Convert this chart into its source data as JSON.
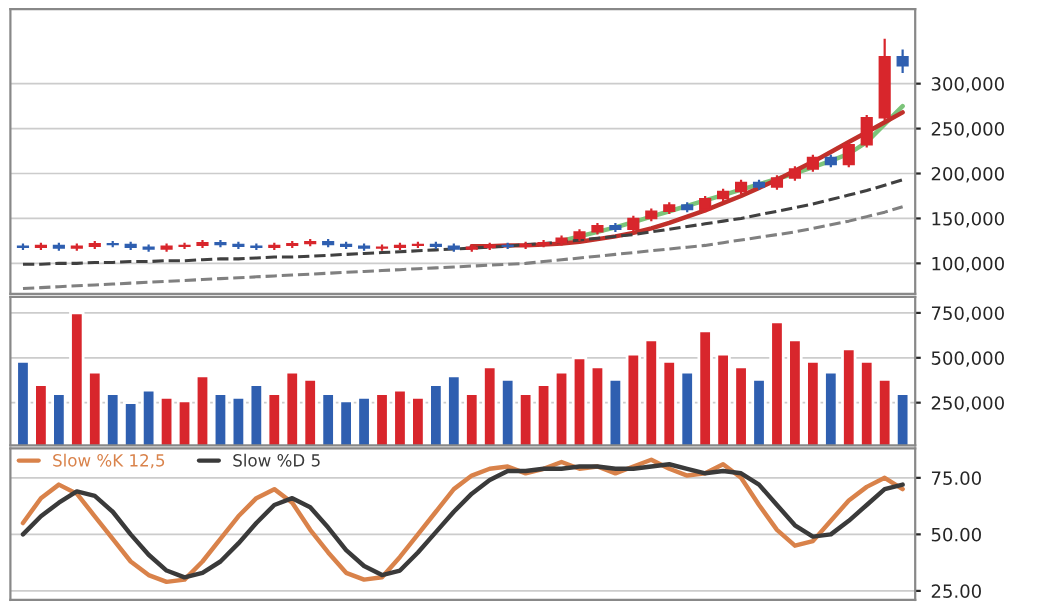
{
  "chart_data": [
    {
      "type": "candlestick",
      "categories": [
        null,
        null,
        null,
        null,
        null,
        null,
        null,
        null,
        null,
        null,
        null,
        null,
        null,
        null,
        null,
        null,
        null,
        null,
        null,
        null,
        null,
        null,
        null,
        null,
        null,
        null,
        null,
        null,
        null,
        null,
        null,
        null,
        null,
        null,
        null,
        null,
        null,
        null,
        null,
        null,
        null,
        null,
        null,
        null,
        null,
        null,
        null,
        null,
        null,
        null
      ],
      "ohlc": [
        [
          119000,
          122000,
          115000,
          118000
        ],
        [
          118000,
          123000,
          115000,
          120000
        ],
        [
          120000,
          123000,
          114000,
          117000
        ],
        [
          117000,
          122000,
          114000,
          119000
        ],
        [
          119000,
          125000,
          116000,
          122000
        ],
        [
          122000,
          125000,
          118000,
          121000
        ],
        [
          121000,
          124000,
          115000,
          118000
        ],
        [
          118000,
          121000,
          113000,
          116000
        ],
        [
          116000,
          122000,
          113000,
          119000
        ],
        [
          119000,
          123000,
          116000,
          120000
        ],
        [
          120000,
          126000,
          117000,
          123000
        ],
        [
          123000,
          126000,
          118000,
          121000
        ],
        [
          121000,
          124000,
          116000,
          119000
        ],
        [
          119000,
          122000,
          115000,
          118000
        ],
        [
          118000,
          123000,
          115000,
          120000
        ],
        [
          120000,
          125000,
          117000,
          122000
        ],
        [
          122000,
          127000,
          119000,
          124000
        ],
        [
          124000,
          127000,
          118000,
          121000
        ],
        [
          121000,
          124000,
          116000,
          119000
        ],
        [
          119000,
          122000,
          114000,
          117000
        ],
        [
          117000,
          121000,
          114000,
          118000
        ],
        [
          118000,
          123000,
          115000,
          120000
        ],
        [
          120000,
          124000,
          117000,
          121000
        ],
        [
          121000,
          124000,
          116000,
          119000
        ],
        [
          119000,
          122000,
          113000,
          116000
        ],
        [
          116000,
          121000,
          113000,
          118000
        ],
        [
          118000,
          123000,
          115000,
          120000
        ],
        [
          120000,
          123000,
          116000,
          119000
        ],
        [
          119000,
          124000,
          116000,
          121000
        ],
        [
          121000,
          126000,
          118000,
          123000
        ],
        [
          123000,
          131000,
          120000,
          128000
        ],
        [
          128000,
          138000,
          125000,
          135000
        ],
        [
          135000,
          145000,
          132000,
          142000
        ],
        [
          142000,
          145000,
          135000,
          138000
        ],
        [
          138000,
          153000,
          135000,
          150000
        ],
        [
          150000,
          161000,
          147000,
          158000
        ],
        [
          158000,
          168000,
          155000,
          165000
        ],
        [
          165000,
          168000,
          157000,
          160000
        ],
        [
          160000,
          175000,
          157000,
          172000
        ],
        [
          172000,
          183000,
          169000,
          180000
        ],
        [
          180000,
          193000,
          177000,
          190000
        ],
        [
          190000,
          193000,
          182000,
          185000
        ],
        [
          185000,
          198000,
          182000,
          195000
        ],
        [
          195000,
          208000,
          192000,
          205000
        ],
        [
          205000,
          221000,
          202000,
          218000
        ],
        [
          218000,
          221000,
          207000,
          210000
        ],
        [
          210000,
          235000,
          207000,
          232000
        ],
        [
          232000,
          265000,
          229000,
          262000
        ],
        [
          262000,
          350000,
          259000,
          330000
        ],
        [
          330000,
          338000,
          312000,
          320000
        ]
      ],
      "colors": [
        "#2f5fb0",
        "#d8262c",
        "#2f5fb0",
        "#d8262c",
        "#d8262c",
        "#2f5fb0",
        "#2f5fb0",
        "#2f5fb0",
        "#d8262c",
        "#d8262c",
        "#d8262c",
        "#2f5fb0",
        "#2f5fb0",
        "#2f5fb0",
        "#d8262c",
        "#d8262c",
        "#d8262c",
        "#2f5fb0",
        "#2f5fb0",
        "#2f5fb0",
        "#d8262c",
        "#d8262c",
        "#d8262c",
        "#2f5fb0",
        "#2f5fb0",
        "#d8262c",
        "#d8262c",
        "#2f5fb0",
        "#d8262c",
        "#d8262c",
        "#d8262c",
        "#d8262c",
        "#d8262c",
        "#2f5fb0",
        "#d8262c",
        "#d8262c",
        "#d8262c",
        "#2f5fb0",
        "#d8262c",
        "#d8262c",
        "#d8262c",
        "#2f5fb0",
        "#d8262c",
        "#d8262c",
        "#d8262c",
        "#2f5fb0",
        "#d8262c",
        "#d8262c",
        "#d8262c",
        "#2f5fb0"
      ],
      "series": [
        {
          "type": "line",
          "color": "#7cc47a",
          "line_style": "solid",
          "values": [
            null,
            null,
            null,
            null,
            null,
            null,
            null,
            null,
            null,
            null,
            null,
            null,
            null,
            null,
            null,
            null,
            null,
            null,
            null,
            null,
            null,
            null,
            null,
            null,
            null,
            null,
            null,
            null,
            null,
            null,
            125000,
            130000,
            135000,
            140000,
            146000,
            152000,
            158000,
            164000,
            170000,
            176000,
            182000,
            188000,
            194000,
            200000,
            207000,
            214000,
            222000,
            235000,
            255000,
            275000
          ]
        },
        {
          "type": "line",
          "color": "#c0302a",
          "line_style": "solid",
          "values": [
            null,
            null,
            null,
            null,
            null,
            null,
            null,
            null,
            null,
            null,
            null,
            null,
            null,
            null,
            null,
            null,
            null,
            null,
            null,
            null,
            null,
            null,
            null,
            null,
            null,
            119000,
            119000,
            120000,
            120000,
            121000,
            122000,
            124000,
            127000,
            130000,
            134000,
            139000,
            145000,
            152000,
            159000,
            167000,
            175000,
            184000,
            193000,
            203000,
            213000,
            224000,
            235000,
            246000,
            257000,
            268000
          ]
        },
        {
          "type": "line",
          "color": "#404040",
          "line_style": "dashed",
          "values": [
            99000,
            99000,
            100000,
            100000,
            101000,
            101000,
            102000,
            102000,
            103000,
            103000,
            104000,
            105000,
            105000,
            106000,
            107000,
            107000,
            108000,
            109000,
            110000,
            111000,
            112000,
            113000,
            114000,
            115000,
            116000,
            117000,
            118000,
            119000,
            121000,
            122000,
            124000,
            126000,
            128000,
            130000,
            132000,
            135000,
            138000,
            141000,
            144000,
            147000,
            150000,
            154000,
            158000,
            162000,
            166000,
            171000,
            176000,
            181000,
            187000,
            193000
          ]
        },
        {
          "type": "line",
          "color": "#808080",
          "line_style": "dashed",
          "values": [
            72000,
            73000,
            74000,
            75000,
            76000,
            77000,
            78000,
            79000,
            80000,
            81000,
            82000,
            83000,
            84000,
            85000,
            86000,
            87000,
            88000,
            89000,
            90000,
            91000,
            92000,
            93000,
            94000,
            95000,
            96000,
            97000,
            98000,
            99000,
            100000,
            102000,
            104000,
            106000,
            108000,
            110000,
            112000,
            114000,
            116000,
            118000,
            120000,
            123000,
            126000,
            129000,
            132000,
            135000,
            139000,
            143000,
            147000,
            152000,
            157000,
            163000
          ]
        }
      ],
      "ylim": [
        66000,
        383000
      ],
      "yticks": [
        {
          "value": 100000,
          "label": "100,000"
        },
        {
          "value": 150000,
          "label": "150,000"
        },
        {
          "value": 200000,
          "label": "200,000"
        },
        {
          "value": 250000,
          "label": "250,000"
        },
        {
          "value": 300000,
          "label": "300,000"
        }
      ],
      "tick_labels": "y",
      "grid": "y"
    },
    {
      "type": "bar",
      "categories": [
        null,
        null,
        null,
        null,
        null,
        null,
        null,
        null,
        null,
        null,
        null,
        null,
        null,
        null,
        null,
        null,
        null,
        null,
        null,
        null,
        null,
        null,
        null,
        null,
        null,
        null,
        null,
        null,
        null,
        null,
        null,
        null,
        null,
        null,
        null,
        null,
        null,
        null,
        null,
        null,
        null,
        null,
        null,
        null,
        null,
        null,
        null,
        null,
        null,
        null
      ],
      "values": [
        480000,
        350000,
        300000,
        750000,
        420000,
        300000,
        250000,
        320000,
        280000,
        260000,
        400000,
        300000,
        280000,
        350000,
        300000,
        420000,
        380000,
        300000,
        260000,
        280000,
        300000,
        320000,
        280000,
        350000,
        400000,
        300000,
        450000,
        380000,
        300000,
        350000,
        420000,
        500000,
        450000,
        380000,
        520000,
        600000,
        480000,
        420000,
        650000,
        520000,
        450000,
        380000,
        700000,
        600000,
        480000,
        420000,
        550000,
        480000,
        380000,
        300000
      ],
      "colors": [
        "#2f5fb0",
        "#d8262c",
        "#2f5fb0",
        "#d8262c",
        "#d8262c",
        "#2f5fb0",
        "#2f5fb0",
        "#2f5fb0",
        "#d8262c",
        "#d8262c",
        "#d8262c",
        "#2f5fb0",
        "#2f5fb0",
        "#2f5fb0",
        "#d8262c",
        "#d8262c",
        "#d8262c",
        "#2f5fb0",
        "#2f5fb0",
        "#2f5fb0",
        "#d8262c",
        "#d8262c",
        "#d8262c",
        "#2f5fb0",
        "#2f5fb0",
        "#d8262c",
        "#d8262c",
        "#2f5fb0",
        "#d8262c",
        "#d8262c",
        "#d8262c",
        "#d8262c",
        "#d8262c",
        "#2f5fb0",
        "#d8262c",
        "#d8262c",
        "#d8262c",
        "#2f5fb0",
        "#d8262c",
        "#d8262c",
        "#d8262c",
        "#2f5fb0",
        "#d8262c",
        "#d8262c",
        "#d8262c",
        "#2f5fb0",
        "#d8262c",
        "#d8262c",
        "#d8262c",
        "#2f5fb0"
      ],
      "ylim": [
        12000,
        839000
      ],
      "yticks": [
        {
          "value": 250000,
          "label": "250,000"
        },
        {
          "value": 500000,
          "label": "500,000"
        },
        {
          "value": 750000,
          "label": "750,000"
        }
      ],
      "tick_labels": "y",
      "grid": "y"
    },
    {
      "type": "line",
      "categories": [
        null,
        null,
        null,
        null,
        null,
        null,
        null,
        null,
        null,
        null,
        null,
        null,
        null,
        null,
        null,
        null,
        null,
        null,
        null,
        null,
        null,
        null,
        null,
        null,
        null,
        null,
        null,
        null,
        null,
        null,
        null,
        null,
        null,
        null,
        null,
        null,
        null,
        null,
        null,
        null,
        null,
        null,
        null,
        null,
        null,
        null,
        null,
        null,
        null,
        null
      ],
      "series": [
        {
          "name": "Slow %K 12,5",
          "color": "#d9824a",
          "values": [
            55,
            66,
            72,
            68,
            58,
            48,
            38,
            32,
            29,
            30,
            38,
            48,
            58,
            66,
            70,
            64,
            52,
            42,
            33,
            30,
            31,
            40,
            50,
            60,
            70,
            76,
            79,
            80,
            77,
            79,
            82,
            79,
            80,
            77,
            80,
            83,
            79,
            76,
            77,
            81,
            75,
            63,
            52,
            45,
            47,
            56,
            65,
            71,
            75,
            70
          ]
        },
        {
          "name": "Slow %D 5",
          "color": "#3a3a3a",
          "values": [
            50,
            58,
            64,
            69,
            67,
            60,
            50,
            41,
            34,
            31,
            33,
            38,
            46,
            55,
            63,
            66,
            62,
            53,
            43,
            36,
            32,
            34,
            42,
            51,
            60,
            68,
            74,
            78,
            78,
            79,
            79,
            80,
            80,
            79,
            79,
            80,
            81,
            79,
            77,
            78,
            77,
            72,
            63,
            54,
            49,
            50,
            56,
            63,
            70,
            72
          ]
        }
      ],
      "ylim": [
        21,
        88
      ],
      "yticks": [
        {
          "value": 25,
          "label": "25.00"
        },
        {
          "value": 50,
          "label": "50.00"
        },
        {
          "value": 75,
          "label": "75.00"
        }
      ],
      "tick_labels": "y",
      "grid": "y",
      "legend": "top left"
    }
  ]
}
